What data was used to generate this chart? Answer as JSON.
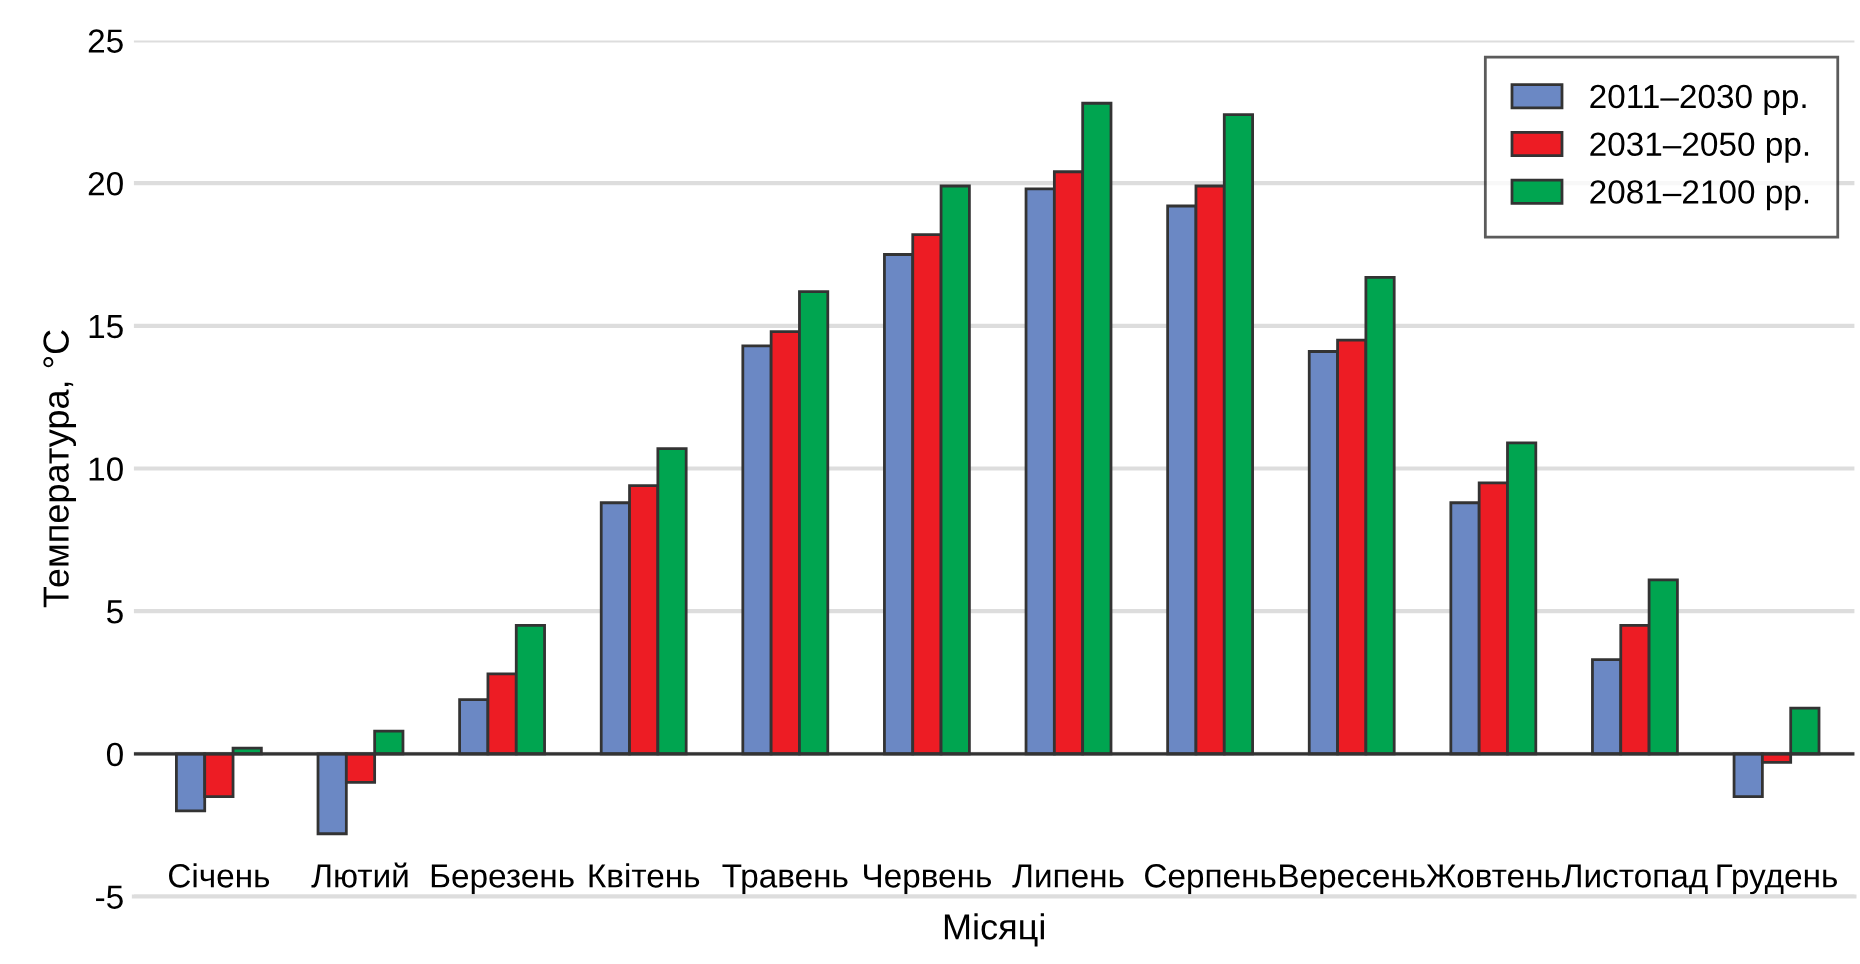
{
  "chart_data": {
    "type": "bar",
    "xlabel": "Місяці",
    "ylabel": "Температура, °C",
    "categories": [
      "Січень",
      "Лютий",
      "Березень",
      "Квітень",
      "Травень",
      "Червень",
      "Липень",
      "Серпень",
      "Вересень",
      "Жовтень",
      "Листопад",
      "Грудень"
    ],
    "series": [
      {
        "name": "2011–2030 рр.",
        "color": "#6b88c4",
        "values": [
          -2.0,
          -2.8,
          1.9,
          8.8,
          14.3,
          17.5,
          19.8,
          19.2,
          14.1,
          8.8,
          3.3,
          -1.5
        ]
      },
      {
        "name": "2031–2050 рр.",
        "color": "#ed1c24",
        "values": [
          -1.5,
          -1.0,
          2.8,
          9.4,
          14.8,
          18.2,
          20.4,
          19.9,
          14.5,
          9.5,
          4.5,
          -0.3
        ]
      },
      {
        "name": "2081–2100 рр.",
        "color": "#00a550",
        "values": [
          0.2,
          0.8,
          4.5,
          10.7,
          16.2,
          19.9,
          22.8,
          22.4,
          16.7,
          10.9,
          6.1,
          1.6
        ]
      }
    ],
    "ylim": [
      -5,
      25
    ],
    "yticks": [
      -5,
      0,
      5,
      10,
      15,
      20,
      25
    ],
    "grid": "y",
    "legend": "top right",
    "ref_lines": [
      {
        "axis": "y",
        "value": 0,
        "color": "#333333"
      }
    ]
  }
}
